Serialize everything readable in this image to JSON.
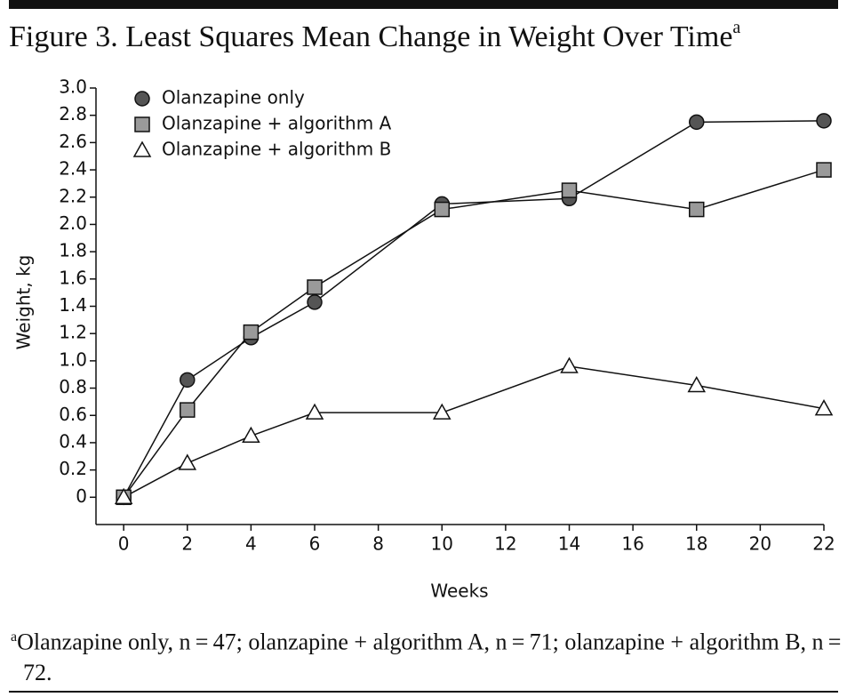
{
  "chart_data": {
    "type": "line",
    "title": "Figure 3. Least Squares Mean Change in Weight Over Time",
    "title_note": "a",
    "x_label": "Weeks",
    "y_label": "Weight, kg",
    "x": [
      0,
      2,
      4,
      6,
      10,
      14,
      18,
      22
    ],
    "series": [
      {
        "name": "Olanzapine only",
        "color": "#555555",
        "marker": "circle",
        "values": [
          0,
          0.86,
          1.17,
          1.43,
          2.15,
          2.19,
          2.75,
          2.76
        ]
      },
      {
        "name": "Olanzapine + algorithm A",
        "color": "#9a9a9a",
        "marker": "square",
        "values": [
          0,
          0.64,
          1.21,
          1.54,
          2.11,
          2.25,
          2.11,
          2.4
        ]
      },
      {
        "name": "Olanzapine + algorithm B",
        "color": "#ffffff",
        "marker": "triangle",
        "values": [
          0,
          0.25,
          0.45,
          0.62,
          0.62,
          0.96,
          0.82,
          0.65
        ]
      }
    ],
    "xlim": [
      -0.87,
      22
    ],
    "xticks": [
      0,
      2,
      4,
      6,
      8,
      10,
      12,
      14,
      16,
      18,
      20,
      22
    ],
    "ylim": [
      -0.2,
      3.0
    ],
    "yticks": [
      0,
      0.2,
      0.4,
      0.6,
      0.8,
      {
        "value": 1,
        "label": "1.0"
      },
      1.2,
      1.4,
      1.6,
      1.8,
      {
        "value": 2,
        "label": "2.0"
      },
      2.2,
      2.4,
      2.6,
      2.8,
      {
        "value": 3,
        "label": "3.0"
      }
    ],
    "grid": false,
    "legend": "upper left",
    "footnote": {
      "marker": "a",
      "text": "Olanzapine only, n = 47; olanzapine + algorithm A, n = 71; olanzapine + algorithm B, n = 72."
    }
  }
}
